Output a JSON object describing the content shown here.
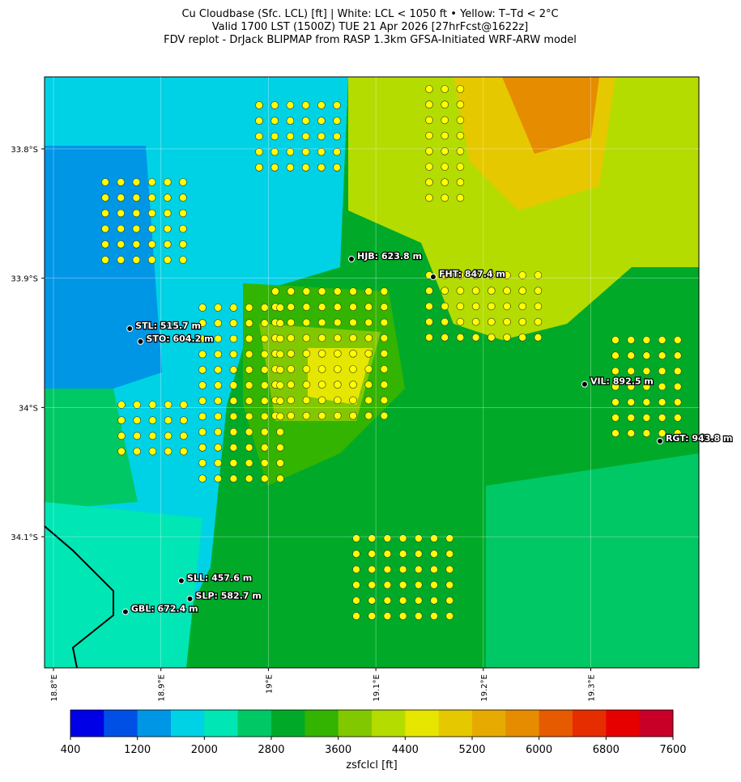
{
  "chart_data": {
    "type": "map",
    "title": [
      "Cu Cloudbase (Sfc. LCL) [ft]  |  White: LCL < 1050 ft • Yellow: T–Td < 2°C",
      "Valid 1700 LST (1500Z) TUE 21 Apr 2026 [27hrFcst@1622z]",
      "FDV replot - DrJack BLIPMAP from RASP 1.3km GFSA-Initiated WRF-ARW model"
    ],
    "xlim": [
      18.7917,
      19.4006
    ],
    "ylim": [
      -34.2014,
      -33.7443
    ],
    "xticks": [
      {
        "value": 18.8,
        "label": "18.8°E"
      },
      {
        "value": 18.9,
        "label": "18.9°E"
      },
      {
        "value": 19.0,
        "label": "19°E"
      },
      {
        "value": 19.1,
        "label": "19.1°E"
      },
      {
        "value": 19.2,
        "label": "19.2°E"
      },
      {
        "value": 19.3,
        "label": "19.3°E"
      }
    ],
    "yticks": [
      {
        "value": -33.8,
        "label": "33.8°S"
      },
      {
        "value": -33.9,
        "label": "33.9°S"
      },
      {
        "value": -34.0,
        "label": "34°S"
      },
      {
        "value": -34.1,
        "label": "34.1°S"
      }
    ],
    "stations": [
      {
        "label": "HJB: 623.8 m",
        "lon": 19.0773,
        "lat": -33.8852
      },
      {
        "label": "FHT: 847.4 m",
        "lon": 19.1534,
        "lat": -33.899
      },
      {
        "label": "STL: 515.7 m",
        "lon": 18.871,
        "lat": -33.939
      },
      {
        "label": "STO: 604.2 m",
        "lon": 18.881,
        "lat": -33.949
      },
      {
        "label": "VIL: 892.5 m",
        "lon": 19.2943,
        "lat": -33.982
      },
      {
        "label": "RGT: 943.8 m",
        "lon": 19.3644,
        "lat": -34.026
      },
      {
        "label": "SLL: 457.6 m",
        "lon": 18.919,
        "lat": -34.134
      },
      {
        "label": "SLP: 582.7 m",
        "lon": 18.927,
        "lat": -34.148
      },
      {
        "label": "GBL: 672.4 m",
        "lon": 18.867,
        "lat": -34.158
      }
    ],
    "colorbar": {
      "label": "zsfclcl [ft]",
      "lim": [
        400,
        7600
      ],
      "ticks": [
        400,
        1200,
        2000,
        2800,
        3600,
        4400,
        5200,
        6000,
        6800,
        7600
      ],
      "colors": [
        "#0000e6",
        "#0050e6",
        "#0096e6",
        "#00d2e6",
        "#00e6b4",
        "#00c864",
        "#00aa28",
        "#32b400",
        "#82c800",
        "#b4dc00",
        "#e6e600",
        "#e6c800",
        "#e6aa00",
        "#e68c00",
        "#e65a00",
        "#e62d00",
        "#e60000",
        "#c80028"
      ]
    }
  }
}
